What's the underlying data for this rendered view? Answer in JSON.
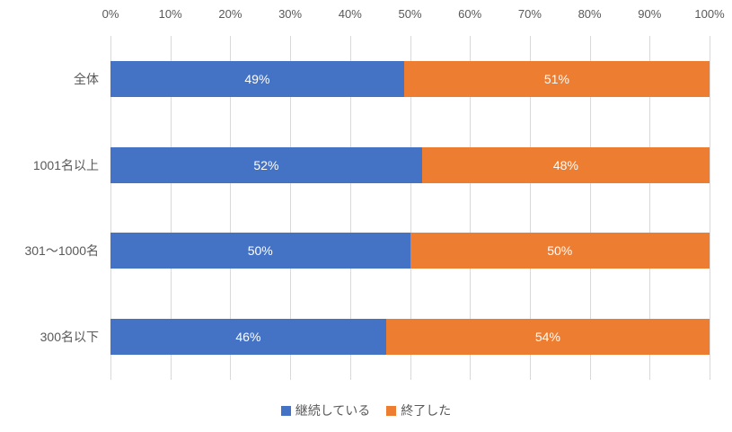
{
  "chart_data": {
    "type": "bar",
    "orientation": "horizontal",
    "stacked": true,
    "title": "",
    "categories": [
      "全体",
      "1001名以上",
      "301〜1000名",
      "300名以下"
    ],
    "series": [
      {
        "name": "継続している",
        "color": "#4472C4",
        "values": [
          49,
          52,
          50,
          46
        ]
      },
      {
        "name": "終了した",
        "color": "#ED7D31",
        "values": [
          51,
          48,
          50,
          54
        ]
      }
    ],
    "x_axis": {
      "position": "top",
      "min": 0,
      "max": 100,
      "tick_labels": [
        "0%",
        "10%",
        "20%",
        "30%",
        "40%",
        "50%",
        "60%",
        "70%",
        "80%",
        "90%",
        "100%"
      ]
    },
    "data_label_suffix": "%",
    "grid": true,
    "legend_position": "bottom"
  },
  "colors": {
    "gridline": "#d9d9d9",
    "axis_text": "#595959",
    "legend_text": "#595959",
    "data_label_text": "#ffffff",
    "background": "#ffffff"
  }
}
